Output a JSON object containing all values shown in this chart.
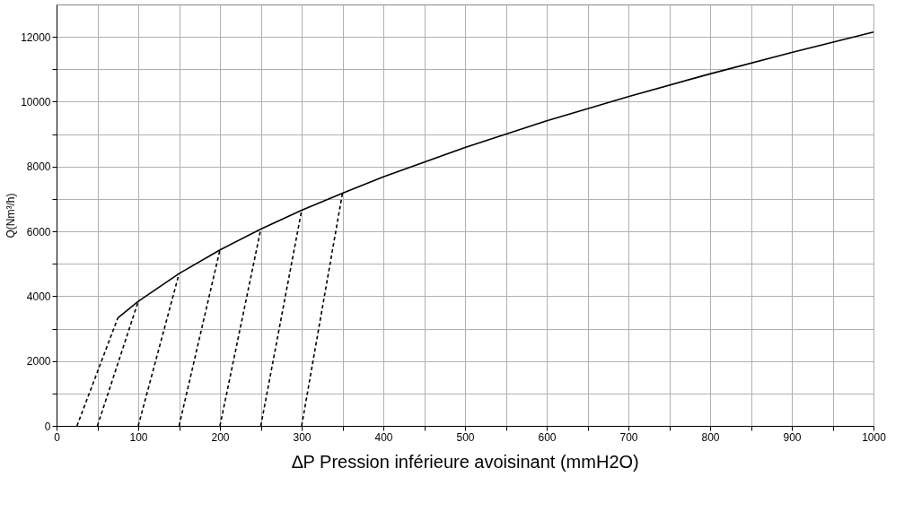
{
  "chart_data": {
    "type": "line",
    "xlabel": "∆P Pression inférieure avoisinant (mmH2O)",
    "ylabel": "Q(Nm³/h)",
    "xlim": [
      0,
      1000
    ],
    "ylim": [
      0,
      13000
    ],
    "xticks": [
      0,
      {
        "value": 50,
        "label": null
      },
      100,
      {
        "value": 150,
        "label": null
      },
      200,
      {
        "value": 250,
        "label": null
      },
      300,
      {
        "value": 350,
        "label": null
      },
      400,
      {
        "value": 450,
        "label": null
      },
      500,
      {
        "value": 550,
        "label": null
      },
      600,
      {
        "value": 650,
        "label": null
      },
      700,
      {
        "value": 750,
        "label": null
      },
      800,
      {
        "value": 850,
        "label": null
      },
      900,
      {
        "value": 950,
        "label": null
      },
      1000
    ],
    "yticks": [
      0,
      {
        "value": 1000,
        "label": null
      },
      2000,
      {
        "value": 3000,
        "label": null
      },
      4000,
      {
        "value": 5000,
        "label": null
      },
      6000,
      {
        "value": 7000,
        "label": null
      },
      8000,
      {
        "value": 9000,
        "label": null
      },
      10000,
      {
        "value": 11000,
        "label": null
      },
      12000
    ],
    "grid": true,
    "marker": "none",
    "series": [
      {
        "color": "#000000",
        "line_style": "solid",
        "x": [
          75,
          100,
          150,
          200,
          250,
          300,
          350,
          400,
          500,
          600,
          700,
          800,
          900,
          1000
        ],
        "values": [
          3330,
          3840,
          4700,
          5430,
          6070,
          6650,
          7180,
          7680,
          8590,
          9410,
          10160,
          10860,
          11520,
          12150
        ]
      },
      {
        "color": "#000000",
        "line_style": "dashed",
        "x": [
          25,
          75
        ],
        "values": [
          0,
          3330
        ]
      },
      {
        "color": "#000000",
        "line_style": "dashed",
        "x": [
          50,
          100
        ],
        "values": [
          0,
          3840
        ]
      },
      {
        "color": "#000000",
        "line_style": "dashed",
        "x": [
          100,
          150
        ],
        "values": [
          0,
          4700
        ]
      },
      {
        "color": "#000000",
        "line_style": "dashed",
        "x": [
          150,
          200
        ],
        "values": [
          0,
          5430
        ]
      },
      {
        "color": "#000000",
        "line_style": "dashed",
        "x": [
          200,
          250
        ],
        "values": [
          0,
          6070
        ]
      },
      {
        "color": "#000000",
        "line_style": "dashed",
        "x": [
          250,
          300
        ],
        "values": [
          0,
          6650
        ]
      },
      {
        "color": "#000000",
        "line_style": "dashed",
        "x": [
          300,
          350
        ],
        "values": [
          0,
          7180
        ]
      }
    ]
  }
}
